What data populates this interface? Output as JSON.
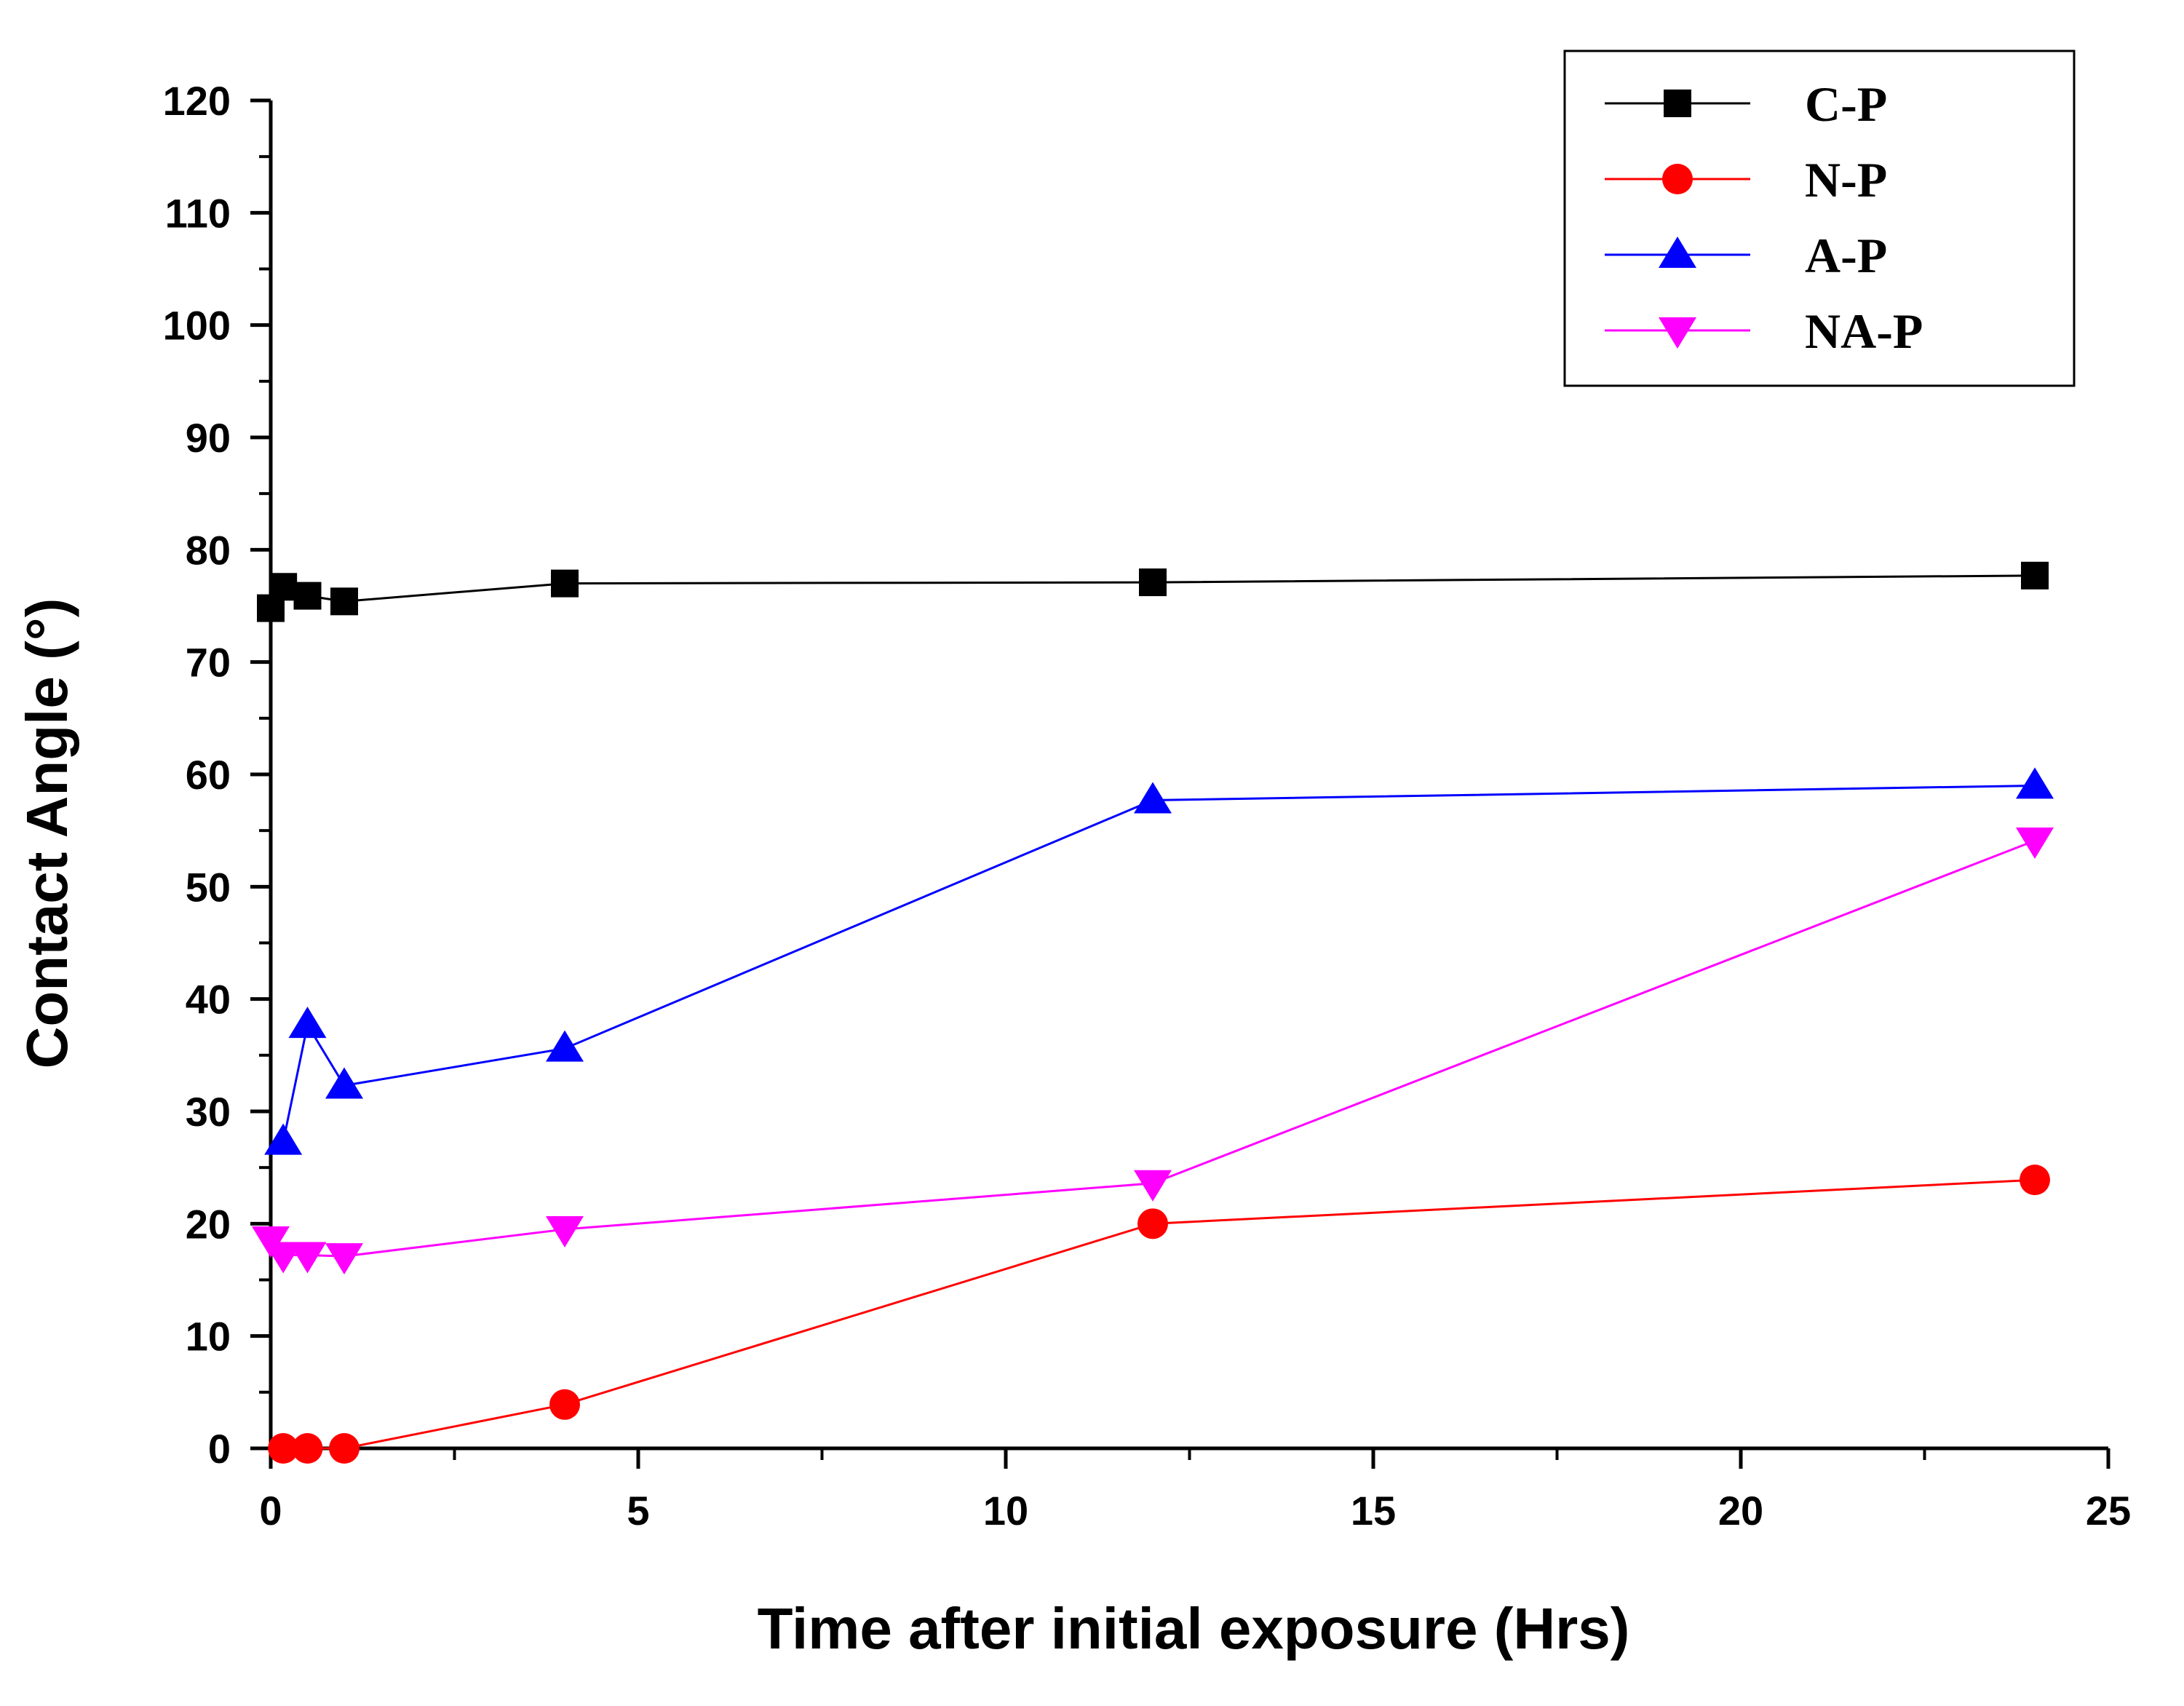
{
  "chart_data": {
    "type": "line",
    "title": "",
    "xlabel": "Time after initial exposure (Hrs)",
    "ylabel": "Contact Angle (°)",
    "xlim": [
      0,
      25
    ],
    "ylim": [
      0,
      120
    ],
    "xticks": [
      "0",
      "5",
      "10",
      "15",
      "20",
      "25"
    ],
    "yticks": [
      "0",
      "10",
      "20",
      "30",
      "40",
      "50",
      "60",
      "70",
      "80",
      "90",
      "100",
      "110",
      "120"
    ],
    "grid": false,
    "legend_position": "top-right",
    "series": [
      {
        "name": "C-P",
        "color": "#000000",
        "marker": "square",
        "x": [
          0,
          0.17,
          0.5,
          1,
          4,
          12,
          24
        ],
        "y": [
          74.8,
          76.7,
          75.9,
          75.4,
          77.0,
          77.1,
          77.7
        ]
      },
      {
        "name": "N-P",
        "color": "#ff0000",
        "marker": "circle",
        "x": [
          0.17,
          0.5,
          1,
          4,
          12,
          24
        ],
        "y": [
          0,
          0,
          0,
          3.9,
          20.0,
          23.9
        ]
      },
      {
        "name": "A-P",
        "color": "#0000ff",
        "marker": "triangle-up",
        "x": [
          0.17,
          0.5,
          1,
          4,
          12,
          24
        ],
        "y": [
          27.3,
          37.7,
          32.3,
          35.6,
          57.7,
          59.0
        ]
      },
      {
        "name": "NA-P",
        "color": "#ff00ff",
        "marker": "triangle-down",
        "x": [
          0,
          0.17,
          0.5,
          1,
          4,
          12,
          24
        ],
        "y": [
          18.6,
          17.2,
          17.2,
          17.1,
          19.5,
          23.6,
          54.1
        ]
      }
    ]
  }
}
